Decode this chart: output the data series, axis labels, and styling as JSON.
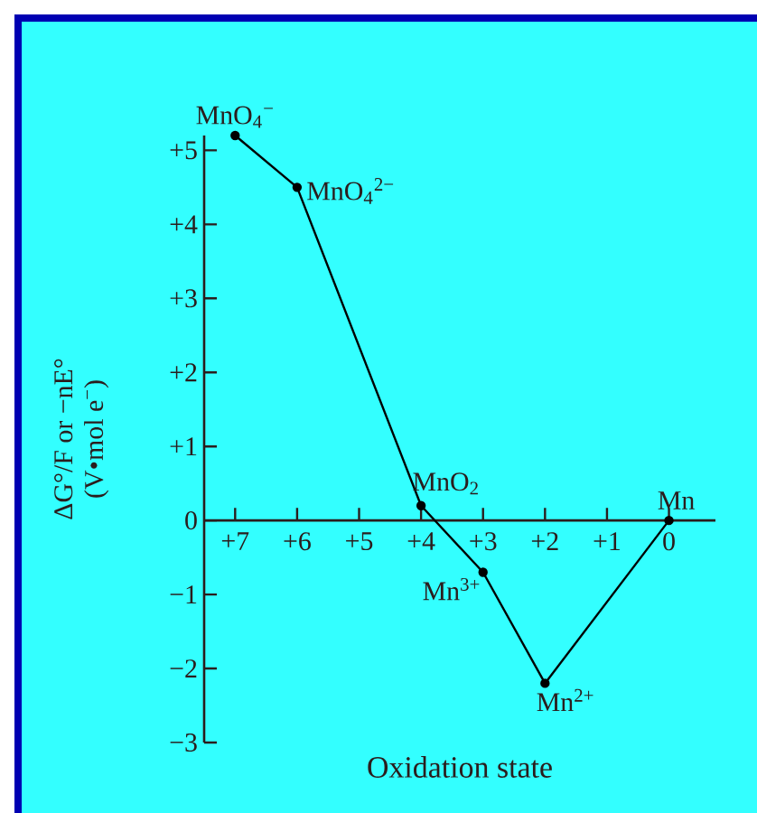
{
  "chart_data": {
    "type": "line",
    "xlabel": "Oxidation state",
    "ylabel": "ΔG°/F or −nE° (V•mol e$^{−}$)",
    "x": [
      7,
      6,
      4,
      3,
      2,
      0
    ],
    "series": [
      {
        "color": "#000000",
        "values": [
          5.2,
          4.5,
          0.2,
          -0.7,
          -2.2,
          0
        ]
      }
    ],
    "marker": "circle",
    "line_style": "solid",
    "xlim": [
      7.5,
      -0.75
    ],
    "ylim": [
      -3,
      5.2
    ],
    "xticks": [
      {
        "value": 7,
        "label": "+7"
      },
      {
        "value": 6,
        "label": "+6"
      },
      {
        "value": 5,
        "label": "+5"
      },
      {
        "value": 4,
        "label": "+4"
      },
      {
        "value": 3,
        "label": "+3"
      },
      {
        "value": 2,
        "label": "+2"
      },
      {
        "value": 1,
        "label": "+1"
      },
      0
    ],
    "yticks": [
      {
        "value": 5,
        "label": "+5"
      },
      {
        "value": 4,
        "label": "+4"
      },
      {
        "value": 3,
        "label": "+3"
      },
      {
        "value": 2,
        "label": "+2"
      },
      {
        "value": 1,
        "label": "+1"
      },
      0,
      {
        "value": -1,
        "label": "−1"
      },
      {
        "value": -2,
        "label": "−2"
      },
      {
        "value": -3,
        "label": "−3"
      }
    ],
    "annotations": [
      {
        "text": "MnO$_{4}$$^{−}$",
        "x": 7,
        "y": 5.2
      },
      {
        "text": "MnO$_{4}$$^{2−}$",
        "x": 6,
        "y": 4.5
      },
      {
        "text": "MnO$_{2}$",
        "x": 4,
        "y": 0.2
      },
      {
        "text": "Mn$^{3+}$",
        "x": 3,
        "y": -0.7
      },
      {
        "text": "Mn$^{2+}$",
        "x": 2,
        "y": -2.2
      },
      {
        "text": "Mn",
        "x": 0,
        "y": 0
      }
    ]
  }
}
